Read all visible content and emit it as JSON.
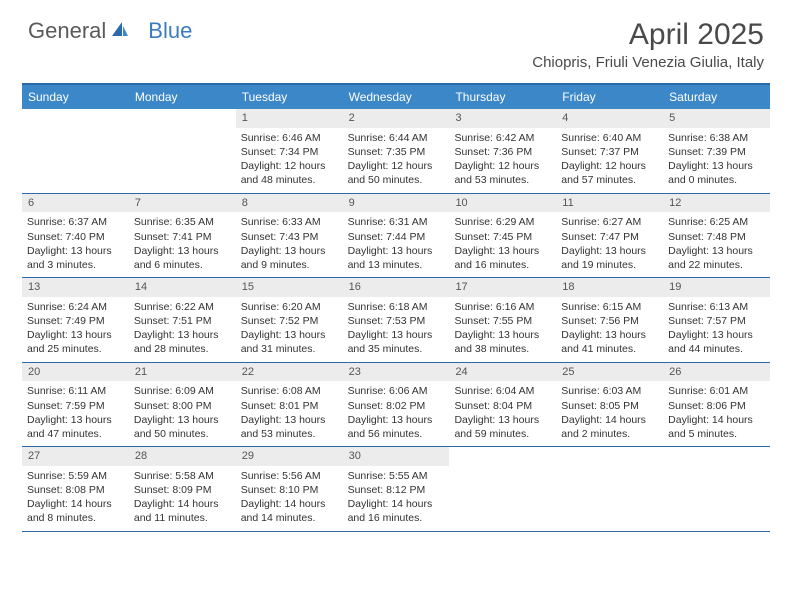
{
  "brand": {
    "part1": "General",
    "part2": "Blue"
  },
  "title": {
    "month": "April 2025",
    "location": "Chiopris, Friuli Venezia Giulia, Italy"
  },
  "colors": {
    "header_bg": "#3b87c8",
    "header_border": "#2b6aa8",
    "daynum_bg": "#ececec",
    "text": "#333333",
    "brand_gray": "#5a5a5a",
    "brand_blue": "#3b7bbf"
  },
  "day_names": [
    "Sunday",
    "Monday",
    "Tuesday",
    "Wednesday",
    "Thursday",
    "Friday",
    "Saturday"
  ],
  "weeks": [
    [
      {
        "empty": true
      },
      {
        "empty": true
      },
      {
        "n": "1",
        "sr": "6:46 AM",
        "ss": "7:34 PM",
        "dl": "12 hours and 48 minutes."
      },
      {
        "n": "2",
        "sr": "6:44 AM",
        "ss": "7:35 PM",
        "dl": "12 hours and 50 minutes."
      },
      {
        "n": "3",
        "sr": "6:42 AM",
        "ss": "7:36 PM",
        "dl": "12 hours and 53 minutes."
      },
      {
        "n": "4",
        "sr": "6:40 AM",
        "ss": "7:37 PM",
        "dl": "12 hours and 57 minutes."
      },
      {
        "n": "5",
        "sr": "6:38 AM",
        "ss": "7:39 PM",
        "dl": "13 hours and 0 minutes."
      }
    ],
    [
      {
        "n": "6",
        "sr": "6:37 AM",
        "ss": "7:40 PM",
        "dl": "13 hours and 3 minutes."
      },
      {
        "n": "7",
        "sr": "6:35 AM",
        "ss": "7:41 PM",
        "dl": "13 hours and 6 minutes."
      },
      {
        "n": "8",
        "sr": "6:33 AM",
        "ss": "7:43 PM",
        "dl": "13 hours and 9 minutes."
      },
      {
        "n": "9",
        "sr": "6:31 AM",
        "ss": "7:44 PM",
        "dl": "13 hours and 13 minutes."
      },
      {
        "n": "10",
        "sr": "6:29 AM",
        "ss": "7:45 PM",
        "dl": "13 hours and 16 minutes."
      },
      {
        "n": "11",
        "sr": "6:27 AM",
        "ss": "7:47 PM",
        "dl": "13 hours and 19 minutes."
      },
      {
        "n": "12",
        "sr": "6:25 AM",
        "ss": "7:48 PM",
        "dl": "13 hours and 22 minutes."
      }
    ],
    [
      {
        "n": "13",
        "sr": "6:24 AM",
        "ss": "7:49 PM",
        "dl": "13 hours and 25 minutes."
      },
      {
        "n": "14",
        "sr": "6:22 AM",
        "ss": "7:51 PM",
        "dl": "13 hours and 28 minutes."
      },
      {
        "n": "15",
        "sr": "6:20 AM",
        "ss": "7:52 PM",
        "dl": "13 hours and 31 minutes."
      },
      {
        "n": "16",
        "sr": "6:18 AM",
        "ss": "7:53 PM",
        "dl": "13 hours and 35 minutes."
      },
      {
        "n": "17",
        "sr": "6:16 AM",
        "ss": "7:55 PM",
        "dl": "13 hours and 38 minutes."
      },
      {
        "n": "18",
        "sr": "6:15 AM",
        "ss": "7:56 PM",
        "dl": "13 hours and 41 minutes."
      },
      {
        "n": "19",
        "sr": "6:13 AM",
        "ss": "7:57 PM",
        "dl": "13 hours and 44 minutes."
      }
    ],
    [
      {
        "n": "20",
        "sr": "6:11 AM",
        "ss": "7:59 PM",
        "dl": "13 hours and 47 minutes."
      },
      {
        "n": "21",
        "sr": "6:09 AM",
        "ss": "8:00 PM",
        "dl": "13 hours and 50 minutes."
      },
      {
        "n": "22",
        "sr": "6:08 AM",
        "ss": "8:01 PM",
        "dl": "13 hours and 53 minutes."
      },
      {
        "n": "23",
        "sr": "6:06 AM",
        "ss": "8:02 PM",
        "dl": "13 hours and 56 minutes."
      },
      {
        "n": "24",
        "sr": "6:04 AM",
        "ss": "8:04 PM",
        "dl": "13 hours and 59 minutes."
      },
      {
        "n": "25",
        "sr": "6:03 AM",
        "ss": "8:05 PM",
        "dl": "14 hours and 2 minutes."
      },
      {
        "n": "26",
        "sr": "6:01 AM",
        "ss": "8:06 PM",
        "dl": "14 hours and 5 minutes."
      }
    ],
    [
      {
        "n": "27",
        "sr": "5:59 AM",
        "ss": "8:08 PM",
        "dl": "14 hours and 8 minutes."
      },
      {
        "n": "28",
        "sr": "5:58 AM",
        "ss": "8:09 PM",
        "dl": "14 hours and 11 minutes."
      },
      {
        "n": "29",
        "sr": "5:56 AM",
        "ss": "8:10 PM",
        "dl": "14 hours and 14 minutes."
      },
      {
        "n": "30",
        "sr": "5:55 AM",
        "ss": "8:12 PM",
        "dl": "14 hours and 16 minutes."
      },
      {
        "empty": true
      },
      {
        "empty": true
      },
      {
        "empty": true
      }
    ]
  ],
  "labels": {
    "sunrise": "Sunrise: ",
    "sunset": "Sunset: ",
    "daylight": "Daylight: "
  }
}
